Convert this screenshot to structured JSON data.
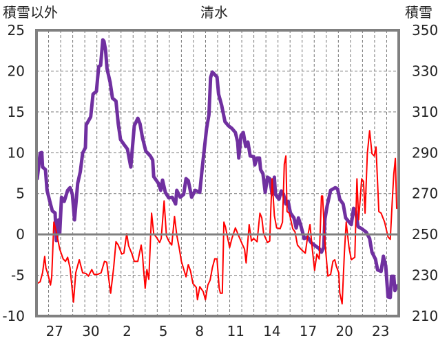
{
  "chart_data": {
    "type": "line",
    "title": "清水",
    "ylabel": "積雪以外",
    "y2label": "積雪",
    "xlim": [
      0,
      30
    ],
    "ylim": [
      -10,
      25
    ],
    "y2lim": [
      210,
      350
    ],
    "yticks": [
      -10,
      -5,
      0,
      5,
      10,
      15,
      20,
      25
    ],
    "y2ticks": [
      210,
      230,
      250,
      270,
      290,
      310,
      330,
      350
    ],
    "xtick_labels": [
      {
        "label": "27",
        "x": 1.5
      },
      {
        "label": "30",
        "x": 4.5
      },
      {
        "label": "2",
        "x": 7.5
      },
      {
        "label": "5",
        "x": 10.5
      },
      {
        "label": "8",
        "x": 13.5
      },
      {
        "label": "11",
        "x": 16.5
      },
      {
        "label": "14",
        "x": 19.5
      },
      {
        "label": "17",
        "x": 22.5
      },
      {
        "label": "20",
        "x": 25.5
      },
      {
        "label": "23",
        "x": 28.5
      }
    ],
    "grid": true,
    "colors": {
      "snow": "#7030A0",
      "other": "#FF0000",
      "frame": "#808080"
    },
    "series": [
      {
        "name": "積雪",
        "axis": "right",
        "color": "#7030A0",
        "points": [
          [
            0.06,
            277.3
          ],
          [
            0.3,
            289.8
          ],
          [
            0.44,
            290.1
          ],
          [
            0.5,
            283.0
          ],
          [
            0.74,
            281.7
          ],
          [
            0.87,
            271.6
          ],
          [
            1.16,
            264.9
          ],
          [
            1.31,
            261.5
          ],
          [
            1.54,
            260.5
          ],
          [
            1.64,
            247.0
          ],
          [
            1.83,
            257.1
          ],
          [
            1.92,
            250.4
          ],
          [
            2.07,
            268.2
          ],
          [
            2.3,
            266.2
          ],
          [
            2.58,
            271.6
          ],
          [
            2.78,
            272.9
          ],
          [
            2.97,
            269.6
          ],
          [
            3.15,
            257.1
          ],
          [
            3.41,
            275.0
          ],
          [
            3.63,
            280.7
          ],
          [
            3.82,
            289.8
          ],
          [
            4.05,
            292.5
          ],
          [
            4.11,
            303.6
          ],
          [
            4.49,
            307.6
          ],
          [
            4.68,
            318.7
          ],
          [
            4.96,
            320.1
          ],
          [
            5.15,
            332.2
          ],
          [
            5.31,
            332.8
          ],
          [
            5.49,
            345.3
          ],
          [
            5.59,
            344.6
          ],
          [
            5.72,
            340.2
          ],
          [
            5.84,
            331.2
          ],
          [
            6.1,
            324.4
          ],
          [
            6.29,
            316.7
          ],
          [
            6.58,
            315.3
          ],
          [
            6.77,
            304.2
          ],
          [
            6.96,
            296.5
          ],
          [
            7.24,
            294.1
          ],
          [
            7.53,
            291.8
          ],
          [
            7.81,
            283.0
          ],
          [
            8.1,
            303.2
          ],
          [
            8.39,
            306.9
          ],
          [
            8.57,
            304.2
          ],
          [
            8.77,
            297.5
          ],
          [
            9.05,
            290.8
          ],
          [
            9.43,
            288.4
          ],
          [
            9.62,
            286.4
          ],
          [
            9.71,
            278.3
          ],
          [
            10.1,
            275.0
          ],
          [
            10.29,
            271.6
          ],
          [
            10.44,
            276.6
          ],
          [
            10.67,
            270.6
          ],
          [
            10.95,
            267.9
          ],
          [
            11.24,
            268.2
          ],
          [
            11.52,
            264.9
          ],
          [
            11.62,
            271.6
          ],
          [
            11.91,
            268.2
          ],
          [
            12.19,
            269.6
          ],
          [
            12.38,
            277.3
          ],
          [
            12.57,
            276.3
          ],
          [
            12.85,
            268.2
          ],
          [
            13.14,
            271.6
          ],
          [
            13.52,
            270.6
          ],
          [
            13.71,
            281.7
          ],
          [
            13.86,
            289.8
          ],
          [
            14.09,
            301.9
          ],
          [
            14.28,
            308.6
          ],
          [
            14.42,
            326.8
          ],
          [
            14.56,
            329.5
          ],
          [
            14.95,
            327.1
          ],
          [
            15.08,
            318.7
          ],
          [
            15.33,
            313.3
          ],
          [
            15.61,
            305.2
          ],
          [
            15.9,
            303.2
          ],
          [
            16.18,
            301.9
          ],
          [
            16.47,
            299.9
          ],
          [
            16.66,
            295.2
          ],
          [
            16.75,
            287.4
          ],
          [
            16.94,
            298.5
          ],
          [
            17.13,
            299.9
          ],
          [
            17.32,
            293.1
          ],
          [
            17.51,
            295.2
          ],
          [
            17.7,
            288.4
          ],
          [
            17.99,
            288.1
          ],
          [
            18.08,
            284.0
          ],
          [
            18.27,
            287.4
          ],
          [
            18.47,
            287.4
          ],
          [
            18.56,
            281.7
          ],
          [
            18.75,
            279.7
          ],
          [
            18.94,
            270.6
          ],
          [
            19.13,
            278.0
          ],
          [
            19.32,
            277.3
          ],
          [
            19.51,
            269.6
          ],
          [
            19.7,
            278.0
          ],
          [
            19.79,
            269.6
          ],
          [
            20.08,
            267.2
          ],
          [
            20.27,
            271.3
          ],
          [
            20.46,
            269.6
          ],
          [
            20.65,
            264.9
          ],
          [
            20.84,
            266.2
          ],
          [
            21.03,
            260.5
          ],
          [
            21.32,
            258.1
          ],
          [
            21.51,
            253.1
          ],
          [
            21.69,
            258.1
          ],
          [
            21.89,
            254.4
          ],
          [
            22.17,
            248.0
          ],
          [
            22.46,
            248.7
          ],
          [
            22.74,
            246.0
          ],
          [
            23.03,
            244.7
          ],
          [
            23.41,
            243.0
          ],
          [
            23.6,
            241.3
          ],
          [
            23.79,
            243.7
          ],
          [
            23.88,
            257.1
          ],
          [
            24.07,
            263.9
          ],
          [
            24.36,
            271.6
          ],
          [
            24.74,
            272.9
          ],
          [
            24.93,
            272.3
          ],
          [
            25.12,
            267.2
          ],
          [
            25.4,
            264.9
          ],
          [
            25.6,
            258.1
          ],
          [
            25.88,
            256.1
          ],
          [
            26.07,
            254.8
          ],
          [
            26.26,
            262.8
          ],
          [
            26.41,
            261.5
          ],
          [
            26.64,
            253.8
          ],
          [
            26.93,
            252.8
          ],
          [
            27.31,
            251.1
          ],
          [
            27.59,
            248.0
          ],
          [
            27.78,
            241.3
          ],
          [
            28.07,
            237.9
          ],
          [
            28.25,
            232.6
          ],
          [
            28.54,
            231.9
          ],
          [
            28.73,
            239.3
          ],
          [
            28.92,
            234.6
          ],
          [
            29.11,
            219.4
          ],
          [
            29.3,
            219.1
          ],
          [
            29.4,
            229.5
          ],
          [
            29.59,
            229.5
          ],
          [
            29.68,
            222.5
          ],
          [
            29.83,
            224.5
          ],
          [
            29.97,
            225.2
          ]
        ]
      },
      {
        "name": "積雪以外",
        "axis": "left",
        "color": "#FF0000",
        "points": [
          [
            0.06,
            -6.0
          ],
          [
            0.3,
            -5.8
          ],
          [
            0.5,
            -4.7
          ],
          [
            0.68,
            -2.7
          ],
          [
            0.78,
            -4.1
          ],
          [
            0.97,
            -5.0
          ],
          [
            1.16,
            -6.2
          ],
          [
            1.26,
            -5.2
          ],
          [
            1.44,
            1.5
          ],
          [
            1.64,
            0.3
          ],
          [
            1.92,
            -1.8
          ],
          [
            2.21,
            -3.0
          ],
          [
            2.4,
            -3.3
          ],
          [
            2.58,
            -2.8
          ],
          [
            2.78,
            -4.1
          ],
          [
            3.06,
            -8.3
          ],
          [
            3.25,
            -4.7
          ],
          [
            3.54,
            -3.1
          ],
          [
            3.82,
            -4.7
          ],
          [
            4.11,
            -4.8
          ],
          [
            4.3,
            -5.1
          ],
          [
            4.58,
            -4.3
          ],
          [
            4.77,
            -4.9
          ],
          [
            5.06,
            -4.9
          ],
          [
            5.35,
            -4.7
          ],
          [
            5.63,
            -3.3
          ],
          [
            5.82,
            -3.4
          ],
          [
            5.92,
            -4.7
          ],
          [
            6.14,
            -7.2
          ],
          [
            6.39,
            -4.1
          ],
          [
            6.58,
            -0.9
          ],
          [
            6.77,
            -1.3
          ],
          [
            7.06,
            -2.4
          ],
          [
            7.24,
            -2.3
          ],
          [
            7.47,
            0.1
          ],
          [
            7.63,
            -1.4
          ],
          [
            7.91,
            -2.4
          ],
          [
            8.1,
            -3.3
          ],
          [
            8.39,
            -3.3
          ],
          [
            8.67,
            -1.3
          ],
          [
            8.77,
            -2.4
          ],
          [
            8.86,
            -4.1
          ],
          [
            9.0,
            -6.6
          ],
          [
            9.14,
            -4.3
          ],
          [
            9.3,
            -5.5
          ],
          [
            9.53,
            2.6
          ],
          [
            9.71,
            0.1
          ],
          [
            10.0,
            -0.5
          ],
          [
            10.19,
            -1.0
          ],
          [
            10.33,
            -0.5
          ],
          [
            10.57,
            4.1
          ],
          [
            10.76,
            -0.2
          ],
          [
            10.95,
            -0.8
          ],
          [
            11.2,
            -1.3
          ],
          [
            11.43,
            2.2
          ],
          [
            11.62,
            -0.1
          ],
          [
            11.81,
            -1.6
          ],
          [
            12.0,
            -3.3
          ],
          [
            12.38,
            -5.2
          ],
          [
            12.57,
            -3.7
          ],
          [
            12.76,
            -4.5
          ],
          [
            12.95,
            -6.0
          ],
          [
            13.23,
            -6.5
          ],
          [
            13.33,
            -8.0
          ],
          [
            13.52,
            -6.4
          ],
          [
            13.8,
            -7.0
          ],
          [
            13.99,
            -8.0
          ],
          [
            14.19,
            -6.2
          ],
          [
            14.38,
            -5.6
          ],
          [
            14.56,
            -4.1
          ],
          [
            14.76,
            -3.0
          ],
          [
            14.95,
            -3.0
          ],
          [
            15.13,
            -6.6
          ],
          [
            15.23,
            -7.2
          ],
          [
            15.39,
            -7.2
          ],
          [
            15.52,
            1.5
          ],
          [
            15.65,
            0.9
          ],
          [
            15.8,
            -0.2
          ],
          [
            15.99,
            -1.6
          ],
          [
            16.18,
            -0.5
          ],
          [
            16.47,
            0.8
          ],
          [
            16.75,
            -0.2
          ],
          [
            17.04,
            -1.2
          ],
          [
            17.23,
            -1.8
          ],
          [
            17.36,
            -3.5
          ],
          [
            17.61,
            1.2
          ],
          [
            17.8,
            -0.8
          ],
          [
            17.99,
            -0.5
          ],
          [
            18.27,
            -0.9
          ],
          [
            18.5,
            2.6
          ],
          [
            18.66,
            2.0
          ],
          [
            18.81,
            0.1
          ],
          [
            19.13,
            -1.0
          ],
          [
            19.32,
            -0.8
          ],
          [
            19.41,
            3.2
          ],
          [
            19.51,
            6.8
          ],
          [
            19.7,
            2.3
          ],
          [
            19.89,
            0.8
          ],
          [
            20.18,
            0.7
          ],
          [
            20.37,
            1.5
          ],
          [
            20.52,
            8.6
          ],
          [
            20.65,
            9.6
          ],
          [
            20.75,
            2.8
          ],
          [
            20.94,
            2.6
          ],
          [
            21.22,
            0.7
          ],
          [
            21.41,
            0.3
          ],
          [
            21.61,
            -1.3
          ],
          [
            21.89,
            -1.8
          ],
          [
            22.26,
            -2.3
          ],
          [
            22.46,
            -0.2
          ],
          [
            22.65,
            1.2
          ],
          [
            22.84,
            -1.8
          ],
          [
            23.03,
            -4.4
          ],
          [
            23.22,
            -2.4
          ],
          [
            23.41,
            -3.0
          ],
          [
            23.6,
            4.7
          ],
          [
            23.69,
            4.7
          ],
          [
            23.88,
            -0.8
          ],
          [
            24.13,
            -5.1
          ],
          [
            24.36,
            -4.9
          ],
          [
            24.55,
            -3.3
          ],
          [
            24.7,
            -3.1
          ],
          [
            24.83,
            -3.9
          ],
          [
            25.03,
            -4.7
          ],
          [
            25.12,
            -7.2
          ],
          [
            25.31,
            -8.5
          ],
          [
            25.5,
            -2.2
          ],
          [
            25.65,
            1.5
          ],
          [
            25.88,
            -1.6
          ],
          [
            26.07,
            -3.1
          ],
          [
            26.36,
            -2.8
          ],
          [
            26.54,
            6.8
          ],
          [
            26.68,
            1.8
          ],
          [
            26.93,
            6.8
          ],
          [
            27.08,
            6.5
          ],
          [
            27.21,
            2.6
          ],
          [
            27.4,
            9.9
          ],
          [
            27.59,
            12.7
          ],
          [
            27.78,
            9.9
          ],
          [
            27.97,
            9.6
          ],
          [
            28.12,
            10.7
          ],
          [
            28.35,
            2.8
          ],
          [
            28.54,
            2.6
          ],
          [
            28.83,
            1.5
          ],
          [
            29.11,
            -0.3
          ],
          [
            29.3,
            -0.6
          ],
          [
            29.49,
            4.9
          ],
          [
            29.59,
            7.4
          ],
          [
            29.72,
            9.3
          ],
          [
            29.83,
            3.2
          ],
          [
            29.97,
            3.2
          ]
        ]
      }
    ]
  }
}
